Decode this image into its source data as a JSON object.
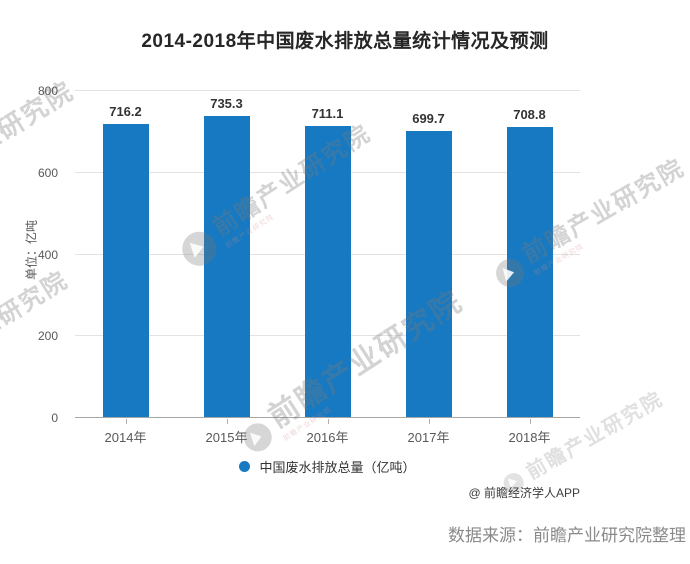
{
  "page": {
    "attribution": "@ 前瞻经济学人APP",
    "source": "数据来源：前瞻产业研究院整理",
    "watermark_text": "前瞻产业研究院",
    "watermark_short": "业研究院"
  },
  "chart_data": {
    "type": "bar",
    "title": "2014-2018年中国废水排放总量统计情况及预测",
    "categories": [
      "2014年",
      "2015年",
      "2016年",
      "2017年",
      "2018年"
    ],
    "values": [
      716.2,
      735.3,
      711.1,
      699.7,
      708.8
    ],
    "series_name": "中国废水排放总量（亿吨）",
    "xlabel": "",
    "ylabel": "单位：亿吨",
    "ylim": [
      0,
      800
    ],
    "yticks": [
      0,
      200,
      400,
      600,
      800
    ],
    "bar_color": "#1779c1",
    "grid": true,
    "legend_position": "bottom",
    "value_labels": true
  }
}
